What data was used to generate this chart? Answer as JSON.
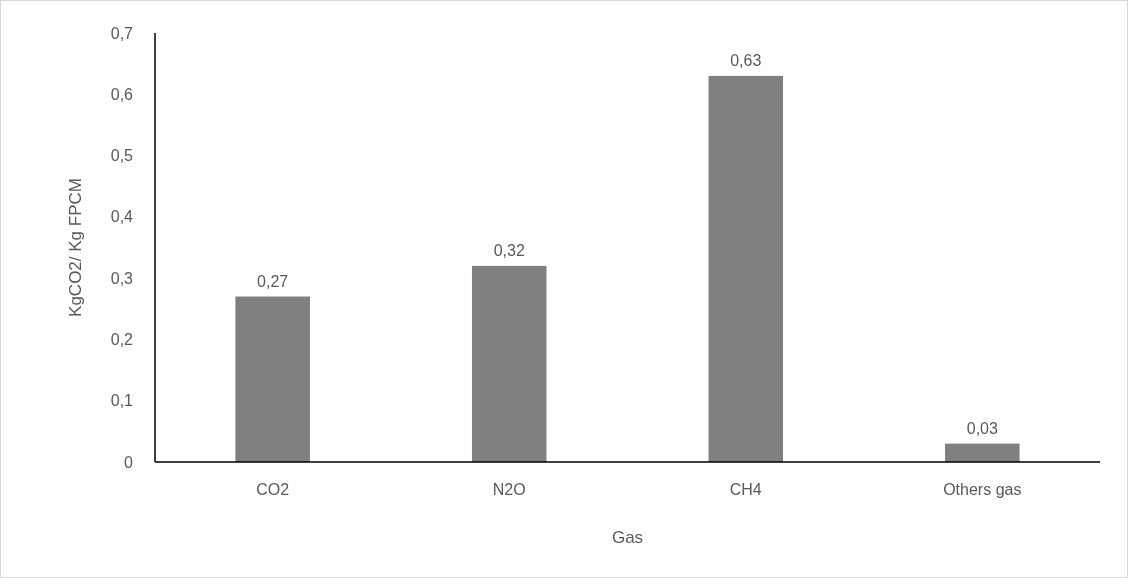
{
  "chart_data": {
    "type": "bar",
    "xlabel": "Gas",
    "ylabel": "KgCO2/ Kg FPCM",
    "categories": [
      "CO2",
      "N2O",
      "CH4",
      "Others gas"
    ],
    "values": [
      0.27,
      0.32,
      0.63,
      0.03
    ],
    "value_labels": [
      "0,27",
      "0,32",
      "0,63",
      "0,03"
    ],
    "color": "#7f7f7f",
    "ylim": [
      0,
      0.7
    ],
    "yticks": [
      {
        "value": 0,
        "label": "0"
      },
      {
        "value": 0.1,
        "label": "0,1"
      },
      {
        "value": 0.2,
        "label": "0,2"
      },
      {
        "value": 0.3,
        "label": "0,3"
      },
      {
        "value": 0.4,
        "label": "0,4"
      },
      {
        "value": 0.5,
        "label": "0,5"
      },
      {
        "value": 0.6,
        "label": "0,6"
      },
      {
        "value": 0.7,
        "label": "0,7"
      }
    ],
    "grid": false
  }
}
